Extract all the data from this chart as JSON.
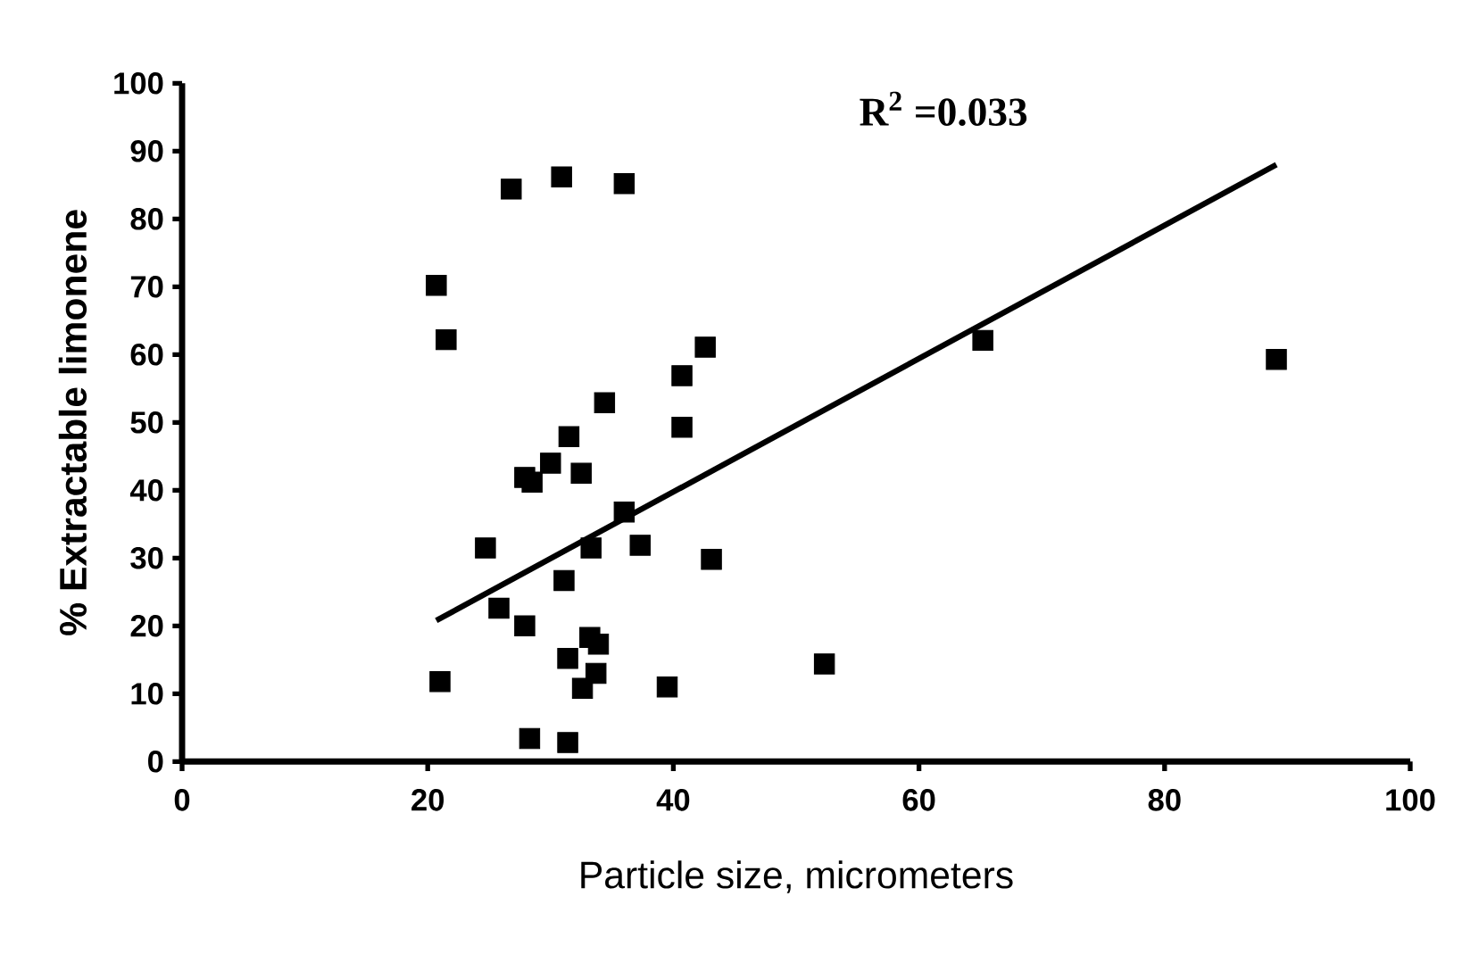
{
  "chart_data": {
    "type": "scatter",
    "xlabel": "Particle size, micrometers",
    "ylabel": "% Extractable limonene",
    "annotations": [
      "R$^{2}$ =0.033"
    ],
    "xlim": [
      0,
      100
    ],
    "xticks": [
      0,
      20,
      40,
      60,
      80,
      100
    ],
    "ylim": [
      0,
      100
    ],
    "yticks": [
      0,
      10,
      20,
      30,
      40,
      50,
      60,
      70,
      80,
      90,
      100
    ],
    "marker": "square",
    "series": [
      {
        "color": "#000000",
        "x": [
          20.7,
          21.5,
          21.0,
          26.8,
          30.9,
          36.0,
          24.7,
          25.8,
          27.9,
          28.3,
          31.4,
          27.9,
          28.5,
          30.0,
          31.5,
          32.5,
          34.4,
          36.0,
          33.3,
          31.1,
          37.3,
          31.4,
          33.2,
          33.9,
          33.7,
          32.6,
          39.5,
          40.7,
          40.7,
          42.6,
          43.1,
          52.3,
          65.2,
          89.1
        ],
        "values": [
          70.2,
          62.2,
          11.8,
          84.4,
          86.2,
          85.2,
          31.5,
          22.6,
          20.0,
          3.4,
          2.8,
          41.9,
          41.2,
          44.0,
          47.9,
          42.5,
          52.9,
          36.8,
          31.5,
          26.7,
          31.9,
          15.2,
          18.3,
          17.3,
          13.0,
          10.8,
          11.0,
          56.9,
          49.3,
          61.1,
          29.8,
          14.4,
          62.1,
          59.3
        ]
      },
      {
        "type": "line",
        "color": "#000000",
        "marker": "none",
        "line_style": "solid",
        "x": [
          20.7,
          89.1
        ],
        "values": [
          20.8,
          88.0
        ]
      }
    ]
  }
}
